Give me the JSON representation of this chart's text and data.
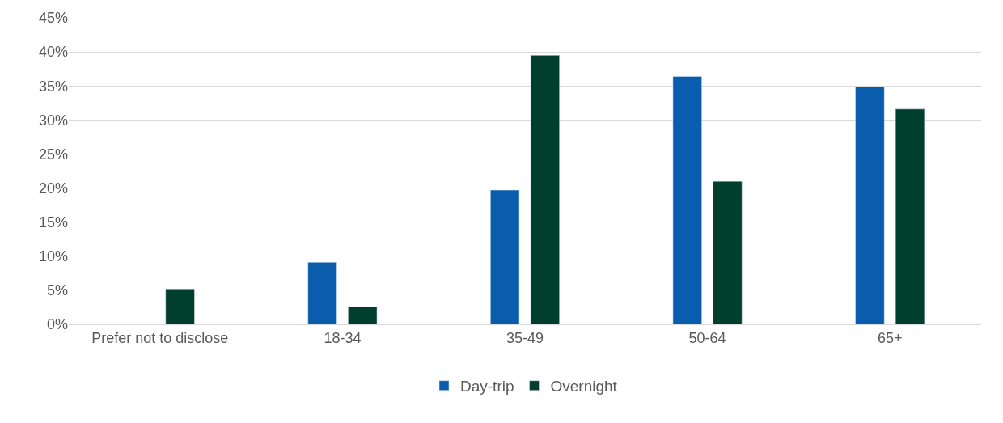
{
  "chart_data": {
    "type": "bar",
    "categories": [
      "Prefer not to disclose",
      "18-34",
      "35-49",
      "50-64",
      "65+"
    ],
    "series": [
      {
        "name": "Day-trip",
        "color": "#0a5cad",
        "values": [
          null,
          9.1,
          19.7,
          36.4,
          34.9
        ]
      },
      {
        "name": "Overnight",
        "color": "#003f2d",
        "values": [
          5.2,
          2.6,
          39.5,
          21.0,
          31.6
        ]
      }
    ],
    "ylim": [
      0,
      45
    ],
    "yticks": [
      {
        "value": 0,
        "label": "0%"
      },
      {
        "value": 5,
        "label": "5%"
      },
      {
        "value": 10,
        "label": "10%"
      },
      {
        "value": 15,
        "label": "15%"
      },
      {
        "value": 20,
        "label": "20%"
      },
      {
        "value": 25,
        "label": "25%"
      },
      {
        "value": 30,
        "label": "30%"
      },
      {
        "value": 35,
        "label": "35%"
      },
      {
        "value": 40,
        "label": "40%"
      },
      {
        "value": 45,
        "label": "45%"
      }
    ],
    "grid": "y",
    "legend": "bottom"
  }
}
